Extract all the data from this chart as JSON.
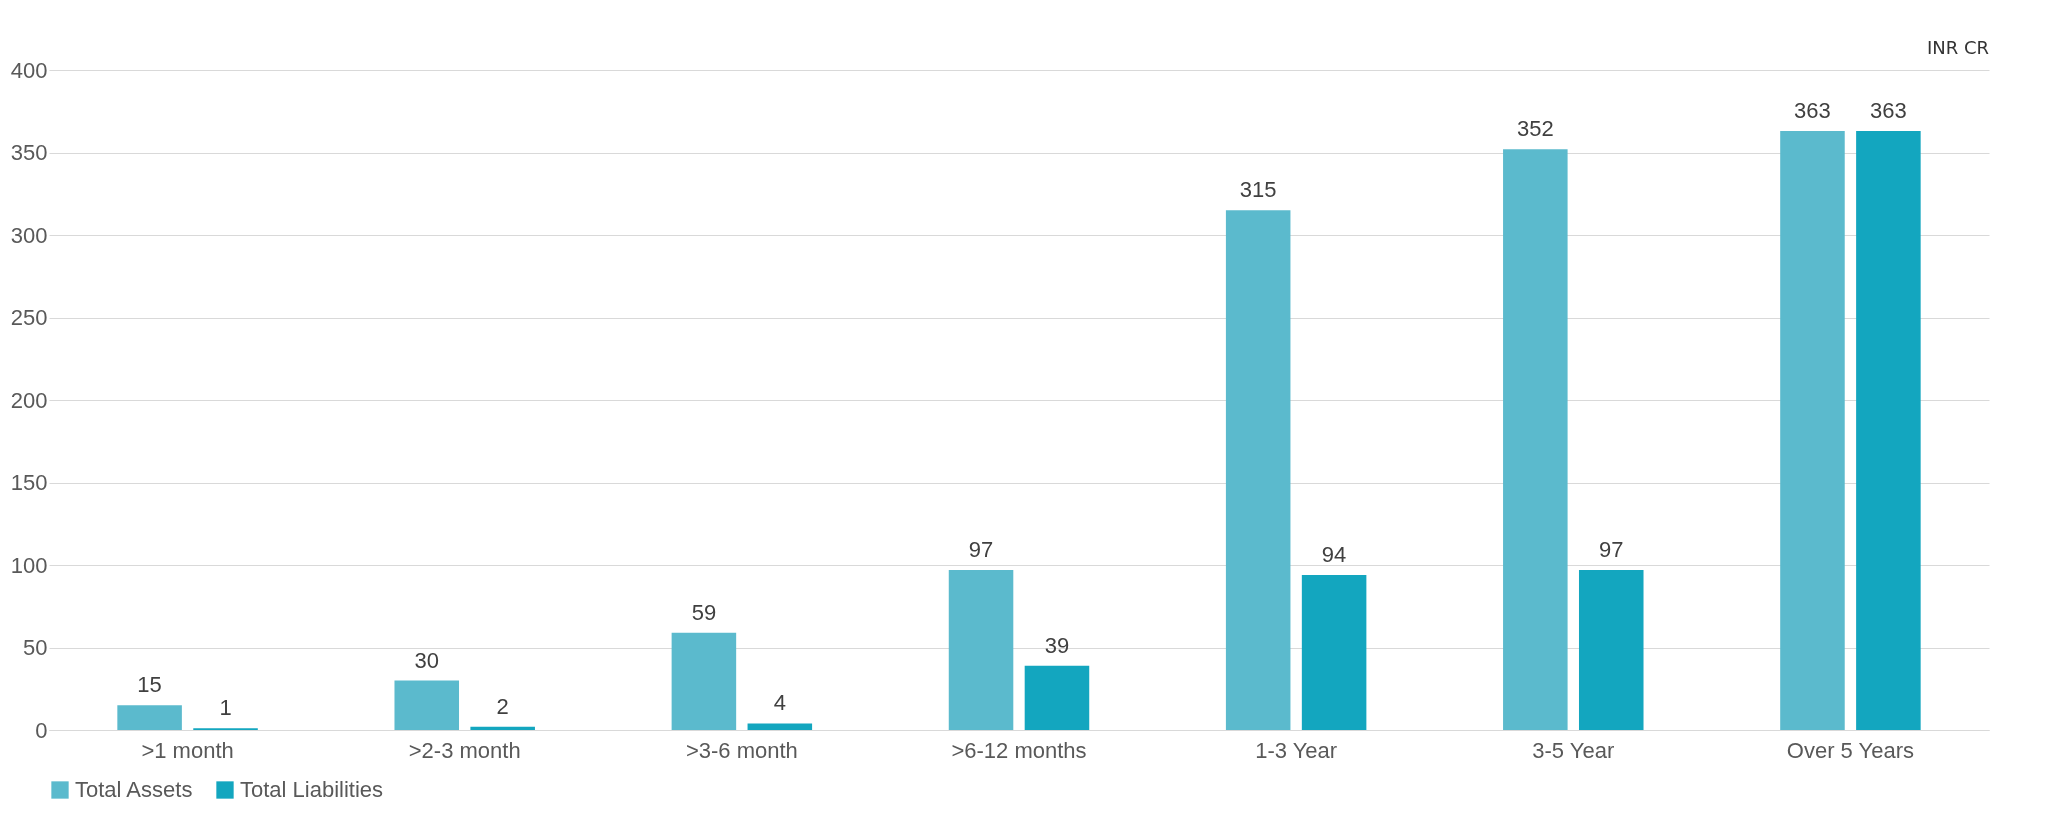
{
  "chart_data": {
    "type": "bar",
    "categories": [
      ">1 month",
      ">2-3 month",
      ">3-6 month",
      ">6-12 months",
      "1-3 Year",
      "3-5 Year",
      "Over 5 Years"
    ],
    "series": [
      {
        "name": "Total Assets",
        "color": "#5bbacd",
        "values": [
          15,
          30,
          59,
          97,
          315,
          352,
          363
        ]
      },
      {
        "name": "Total Liabilities",
        "color": "#13a6bf",
        "values": [
          1,
          2,
          4,
          39,
          94,
          97,
          363
        ]
      }
    ],
    "ylim": [
      0,
      400
    ],
    "yticks": [
      0,
      50,
      100,
      150,
      200,
      250,
      300,
      350,
      400
    ],
    "grid": "y",
    "legend": "bottom",
    "data_labels": true,
    "annotations": [
      "INR CR"
    ]
  }
}
